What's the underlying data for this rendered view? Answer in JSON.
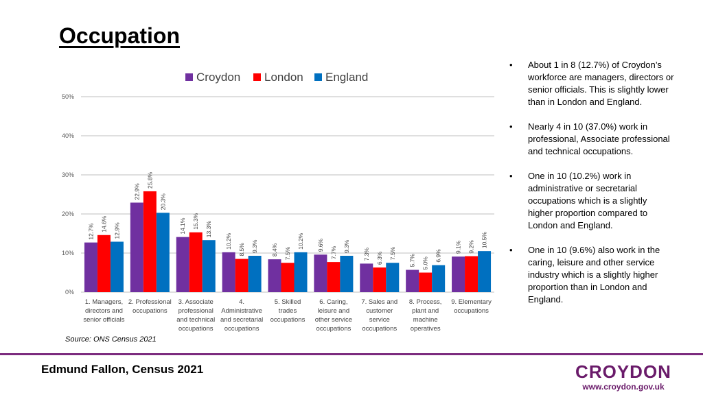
{
  "page": {
    "title": "Occupation",
    "source": "Source: ONS Census 2021",
    "author": "Edmund Fallon, Census 2021",
    "logo_text": "CROYDON",
    "logo_url": "www.croydon.gov.uk"
  },
  "bullets": [
    "About 1 in 8 (12.7%) of Croydon’s workforce are managers, directors or senior officials. This is slightly lower than in London and England.",
    "Nearly 4 in 10 (37.0%) work in professional, Associate professional and technical occupations.",
    "One in 10 (10.2%) work in administrative or secretarial occupations which is a slightly higher proportion compared to London and England.",
    "One in 10 (9.6%) also work in the caring, leisure and other service industry which is a slightly higher proportion than in London and England."
  ],
  "chart_data": {
    "type": "bar",
    "categories": [
      [
        "1. Managers,",
        "directors and",
        "senior officials"
      ],
      [
        "2. Professional",
        "occupations"
      ],
      [
        "3. Associate",
        "professional",
        "and technical",
        "occupations"
      ],
      [
        "4.",
        "Administrative",
        "and secretarial",
        "occupations"
      ],
      [
        "5. Skilled",
        "trades",
        "occupations"
      ],
      [
        "6. Caring,",
        "leisure and",
        "other service",
        "occupations"
      ],
      [
        "7. Sales and",
        "customer",
        "service",
        "occupations"
      ],
      [
        "8. Process,",
        "plant and",
        "machine",
        "operatives"
      ],
      [
        "9. Elementary",
        "occupations"
      ]
    ],
    "series": [
      {
        "name": "Croydon",
        "color": "#7030a0",
        "values": [
          12.7,
          22.9,
          14.1,
          10.2,
          8.4,
          9.6,
          7.3,
          5.7,
          9.1
        ],
        "labels": [
          "12.7%",
          "22.9%",
          "14.1%",
          "10.2%",
          "8.4%",
          "9.6%",
          "7.3%",
          "5.7%",
          "9.1%"
        ]
      },
      {
        "name": "London",
        "color": "#ff0000",
        "values": [
          14.6,
          25.8,
          15.3,
          8.5,
          7.5,
          7.7,
          6.3,
          5.0,
          9.2
        ],
        "labels": [
          "14.6%",
          "25.8%",
          "15.3%",
          "8.5%",
          "7.5%",
          "7.7%",
          "6.3%",
          "5.0%",
          "9.2%"
        ]
      },
      {
        "name": "England",
        "color": "#0070c0",
        "values": [
          12.9,
          20.3,
          13.3,
          9.3,
          10.2,
          9.3,
          7.5,
          6.9,
          10.5
        ],
        "labels": [
          "12.9%",
          "20.3%",
          "13.3%",
          "9.3%",
          "10.2%",
          "9.3%",
          "7.5%",
          "6.9%",
          "10.5%"
        ]
      }
    ],
    "yticks": [
      "0%",
      "10%",
      "20%",
      "30%",
      "40%",
      "50%"
    ],
    "ylim": [
      0,
      50
    ],
    "grid": true,
    "legend_position": "top"
  }
}
